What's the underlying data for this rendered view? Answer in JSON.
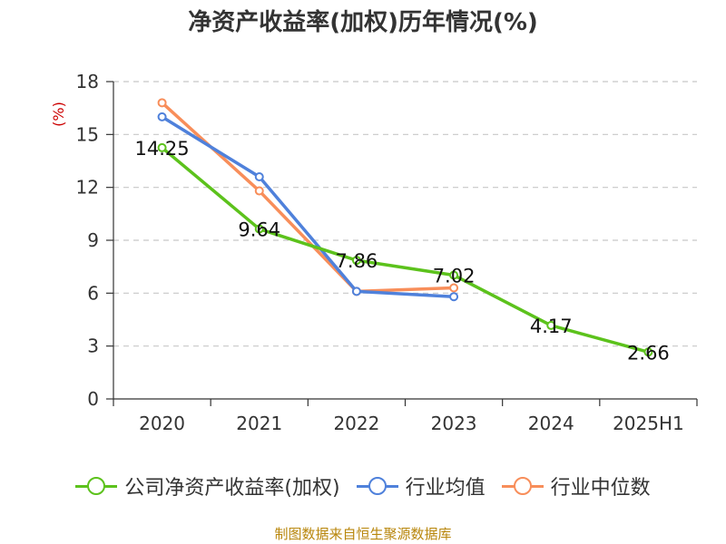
{
  "title": "净资产收益率(加权)历年情况(%)",
  "source": "制图数据来自恒生聚源数据库",
  "chart_data": {
    "type": "line",
    "title": "净资产收益率(加权)历年情况(%)",
    "ylabel": "(%)",
    "xlabel": "",
    "categories": [
      "2020",
      "2021",
      "2022",
      "2023",
      "2024",
      "2025H1"
    ],
    "ylim": [
      0,
      18
    ],
    "yticks": [
      0,
      3,
      6,
      9,
      12,
      15,
      18
    ],
    "grid": true,
    "legend_position": "bottom",
    "series": [
      {
        "name": "公司净资产收益率(加权)",
        "color": "#5cc21c",
        "values": [
          14.25,
          9.64,
          7.86,
          7.02,
          4.17,
          2.66
        ],
        "labels": [
          "14.25",
          "9.64",
          "7.86",
          "7.02",
          "4.17",
          "2.66"
        ]
      },
      {
        "name": "行业均值",
        "color": "#4f81db",
        "values": [
          16.0,
          12.6,
          6.1,
          5.8,
          null,
          null
        ]
      },
      {
        "name": "行业中位数",
        "color": "#f88e5a",
        "values": [
          16.8,
          11.8,
          6.1,
          6.3,
          null,
          null
        ]
      }
    ]
  }
}
